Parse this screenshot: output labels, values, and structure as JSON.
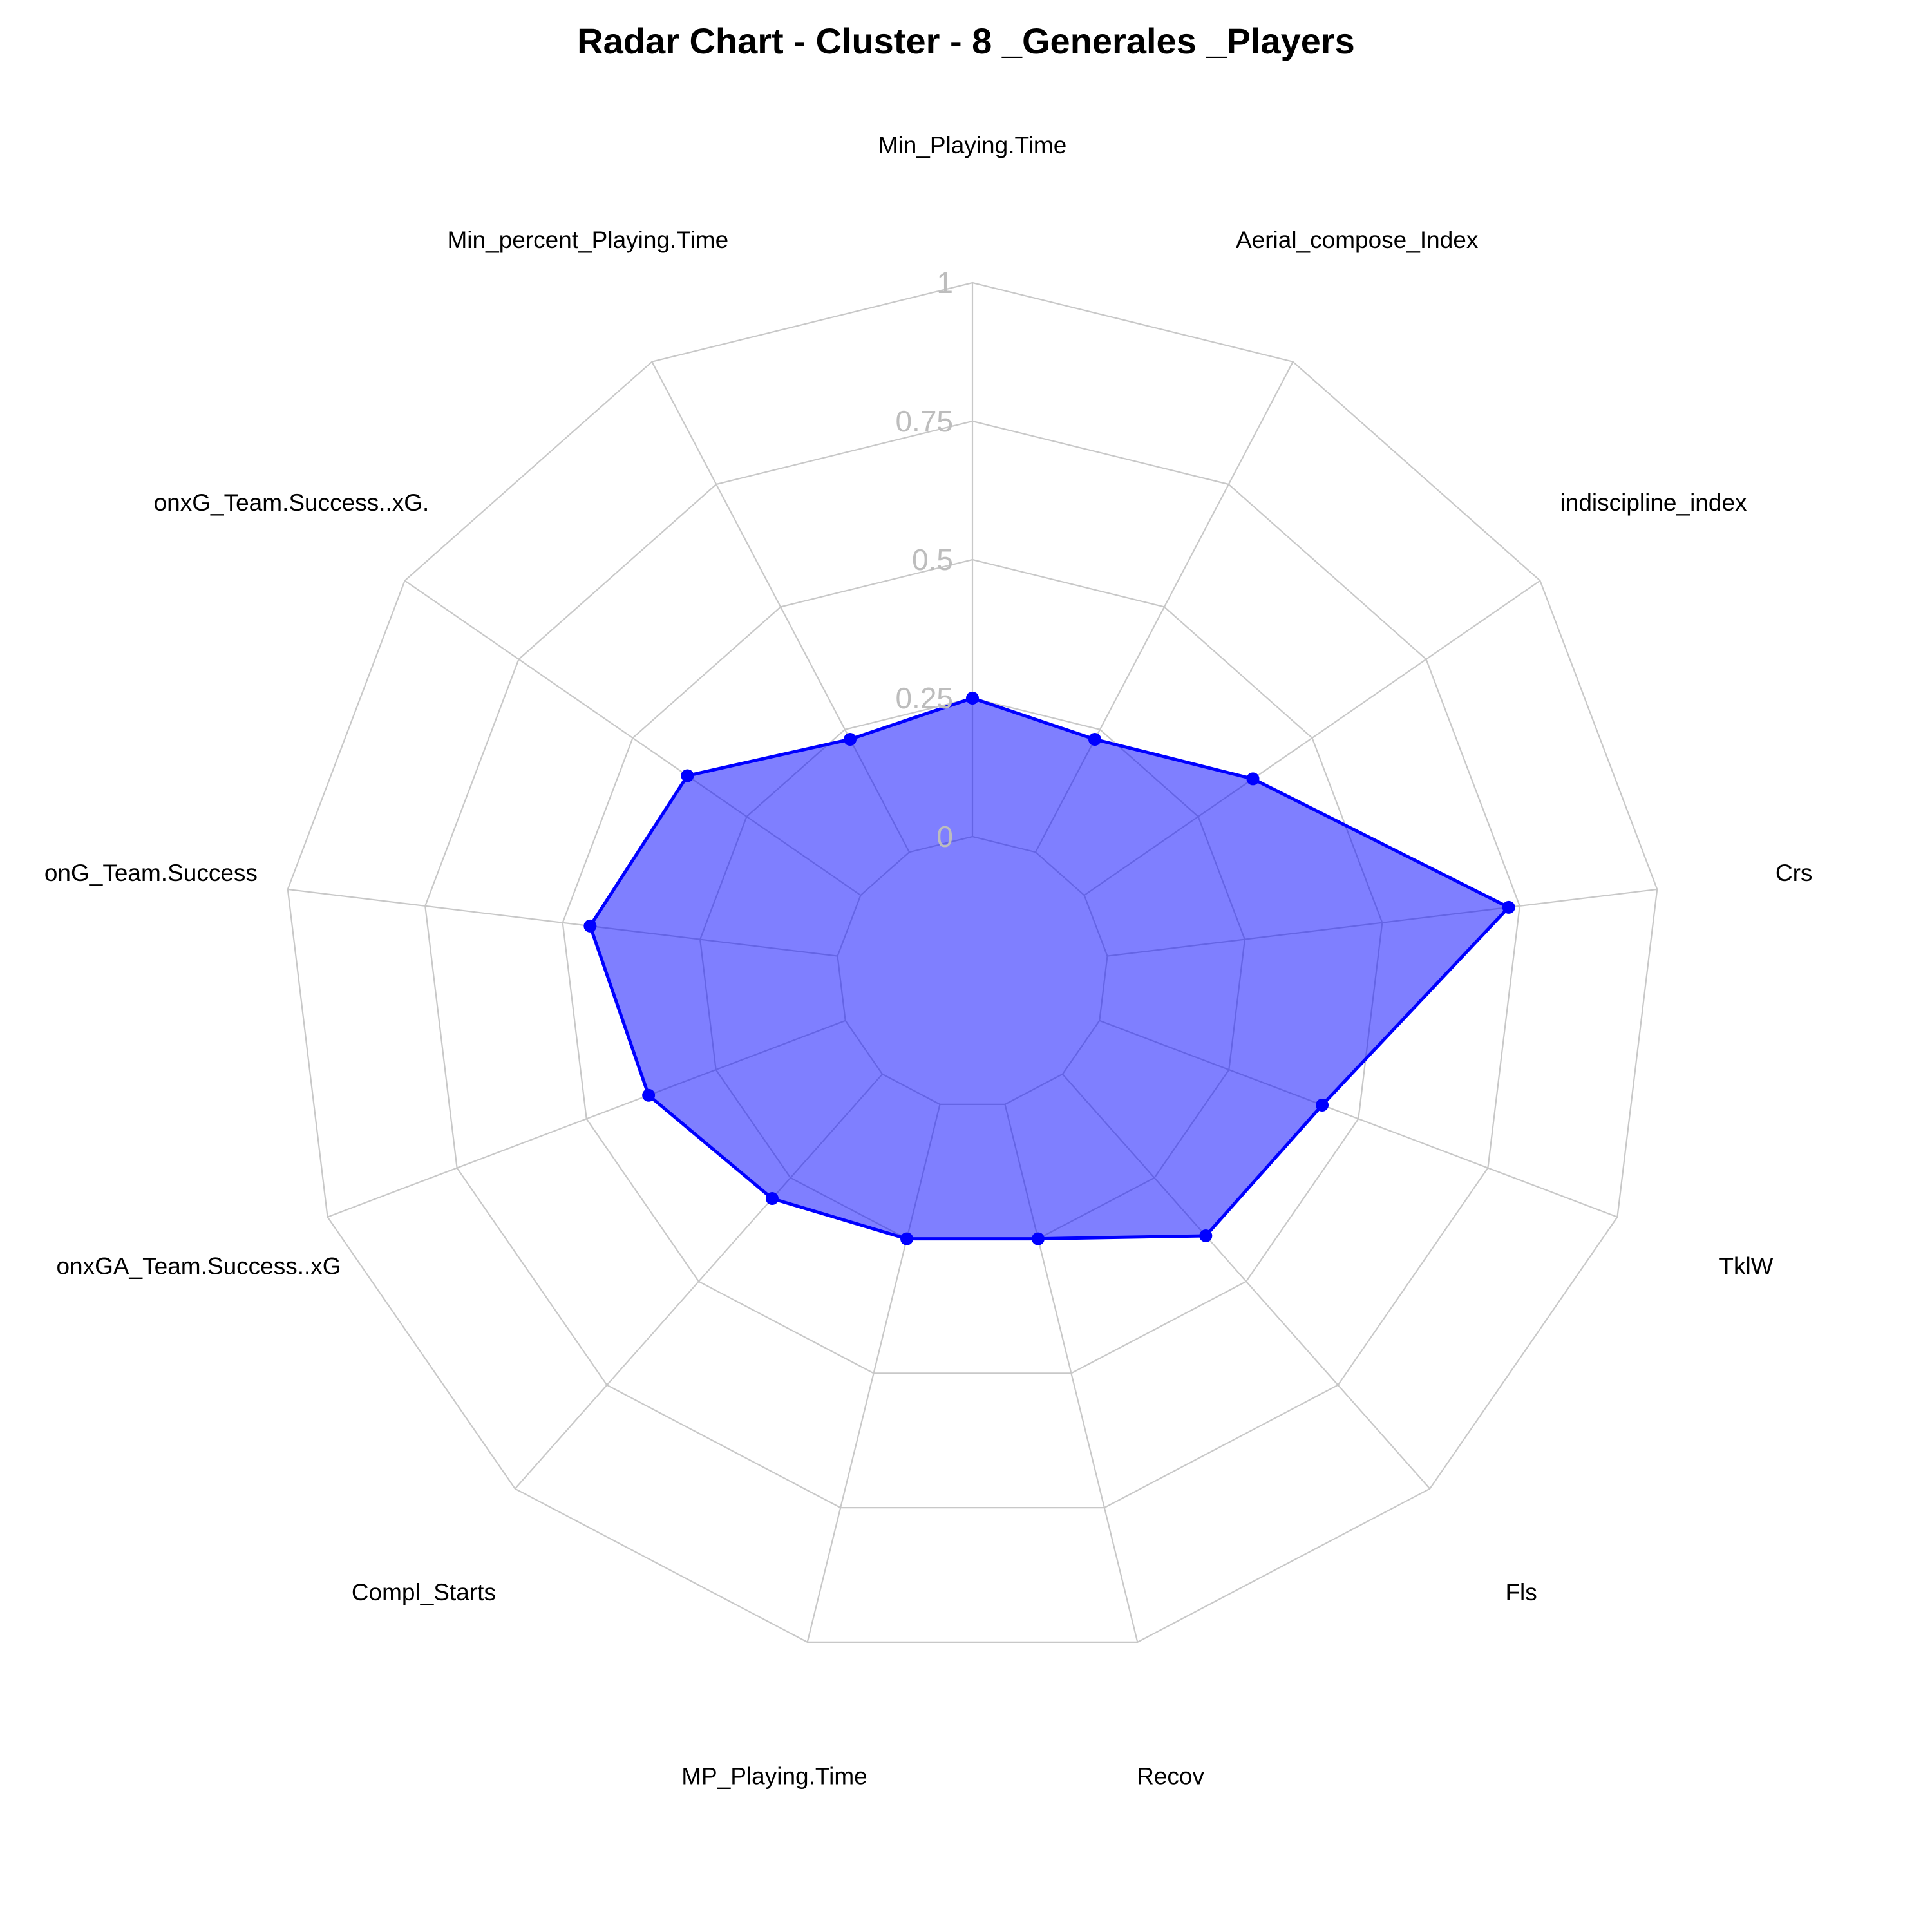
{
  "chart_data": {
    "type": "radar",
    "title": "Radar Chart - Cluster - 8 _Generales _Players",
    "axes": [
      "Min_Playing.Time",
      "Aerial_compose_Index",
      "indiscipline_index",
      "Crs",
      "TklW",
      "Fls",
      "Recov",
      "MP_Playing.Time",
      "Compl_Starts",
      "onxGA_Team.Success..xG",
      "onG_Team.Success",
      "onxG_Team.Success..xG.",
      "Min_percent_Playing.Time"
    ],
    "series": [
      {
        "values": [
          0.25,
          0.23,
          0.37,
          0.73,
          0.43,
          0.39,
          0.25,
          0.25,
          0.3,
          0.38,
          0.45,
          0.38,
          0.23
        ]
      }
    ],
    "rlim": [
      0,
      1
    ],
    "ticks": [
      "0",
      "0.25",
      "0.5",
      "0.75",
      "1"
    ],
    "tick_values": [
      0,
      0.25,
      0.5,
      0.75,
      1
    ],
    "grid": true,
    "legend": "none",
    "colors": {
      "series_line": "#0000ff",
      "series_fill": "#0000ff",
      "series_fill_opacity": 0.5,
      "grid": "#c8c8c8",
      "tick_text": "#bdbdbd"
    }
  }
}
